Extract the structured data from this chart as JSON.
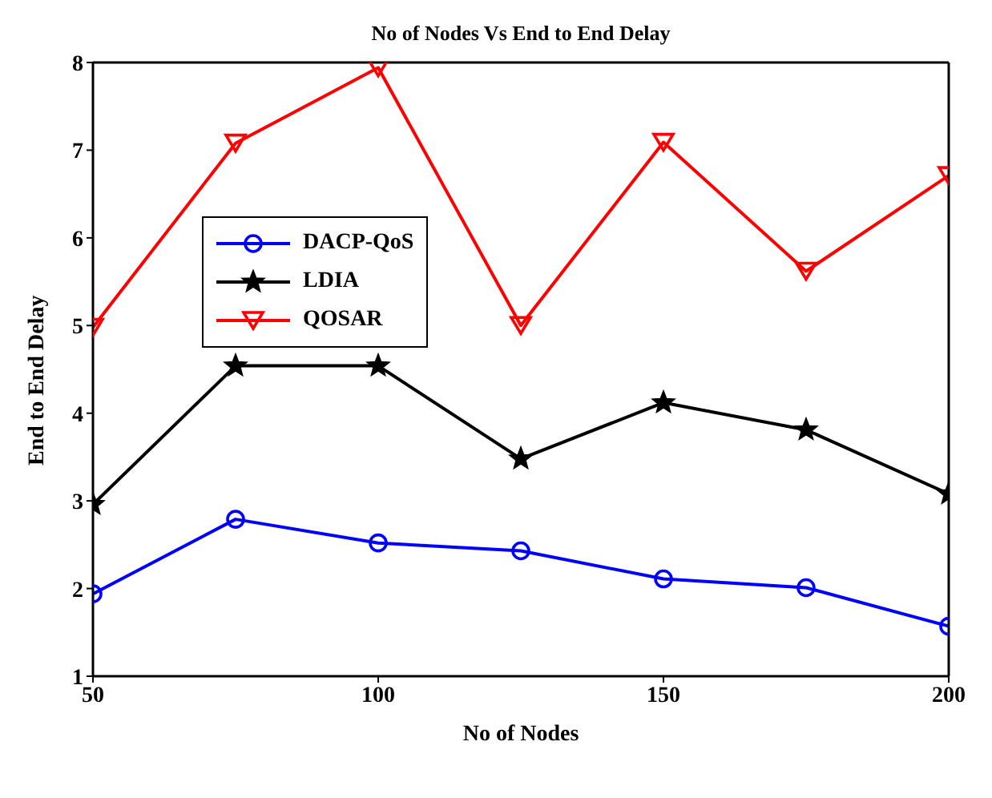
{
  "chart_data": {
    "type": "line",
    "title": "No of Nodes Vs End to End Delay",
    "xlabel": "No of Nodes",
    "ylabel": "End to End Delay",
    "x": [
      50,
      75,
      100,
      125,
      150,
      175,
      200
    ],
    "xlim": [
      50,
      200
    ],
    "xticks": [
      50,
      100,
      150,
      200
    ],
    "ylim": [
      1,
      8
    ],
    "yticks": [
      1,
      2,
      3,
      4,
      5,
      6,
      7,
      8
    ],
    "grid": false,
    "legend": "top left",
    "line_style": "solid",
    "series": [
      {
        "name": "DACP-QoS",
        "color": "#0000ff",
        "marker": "circle",
        "values": [
          1.94,
          2.79,
          2.52,
          2.43,
          2.11,
          2.01,
          1.57
        ]
      },
      {
        "name": "LDIA",
        "color": "#000000",
        "marker": "star",
        "values": [
          2.96,
          4.54,
          4.54,
          3.48,
          4.12,
          3.81,
          3.08
        ]
      },
      {
        "name": "QOSAR",
        "color": "#ff0000",
        "marker": "triangle-down",
        "values": [
          4.98,
          7.08,
          7.94,
          5.0,
          7.09,
          5.62,
          6.71
        ]
      }
    ]
  }
}
